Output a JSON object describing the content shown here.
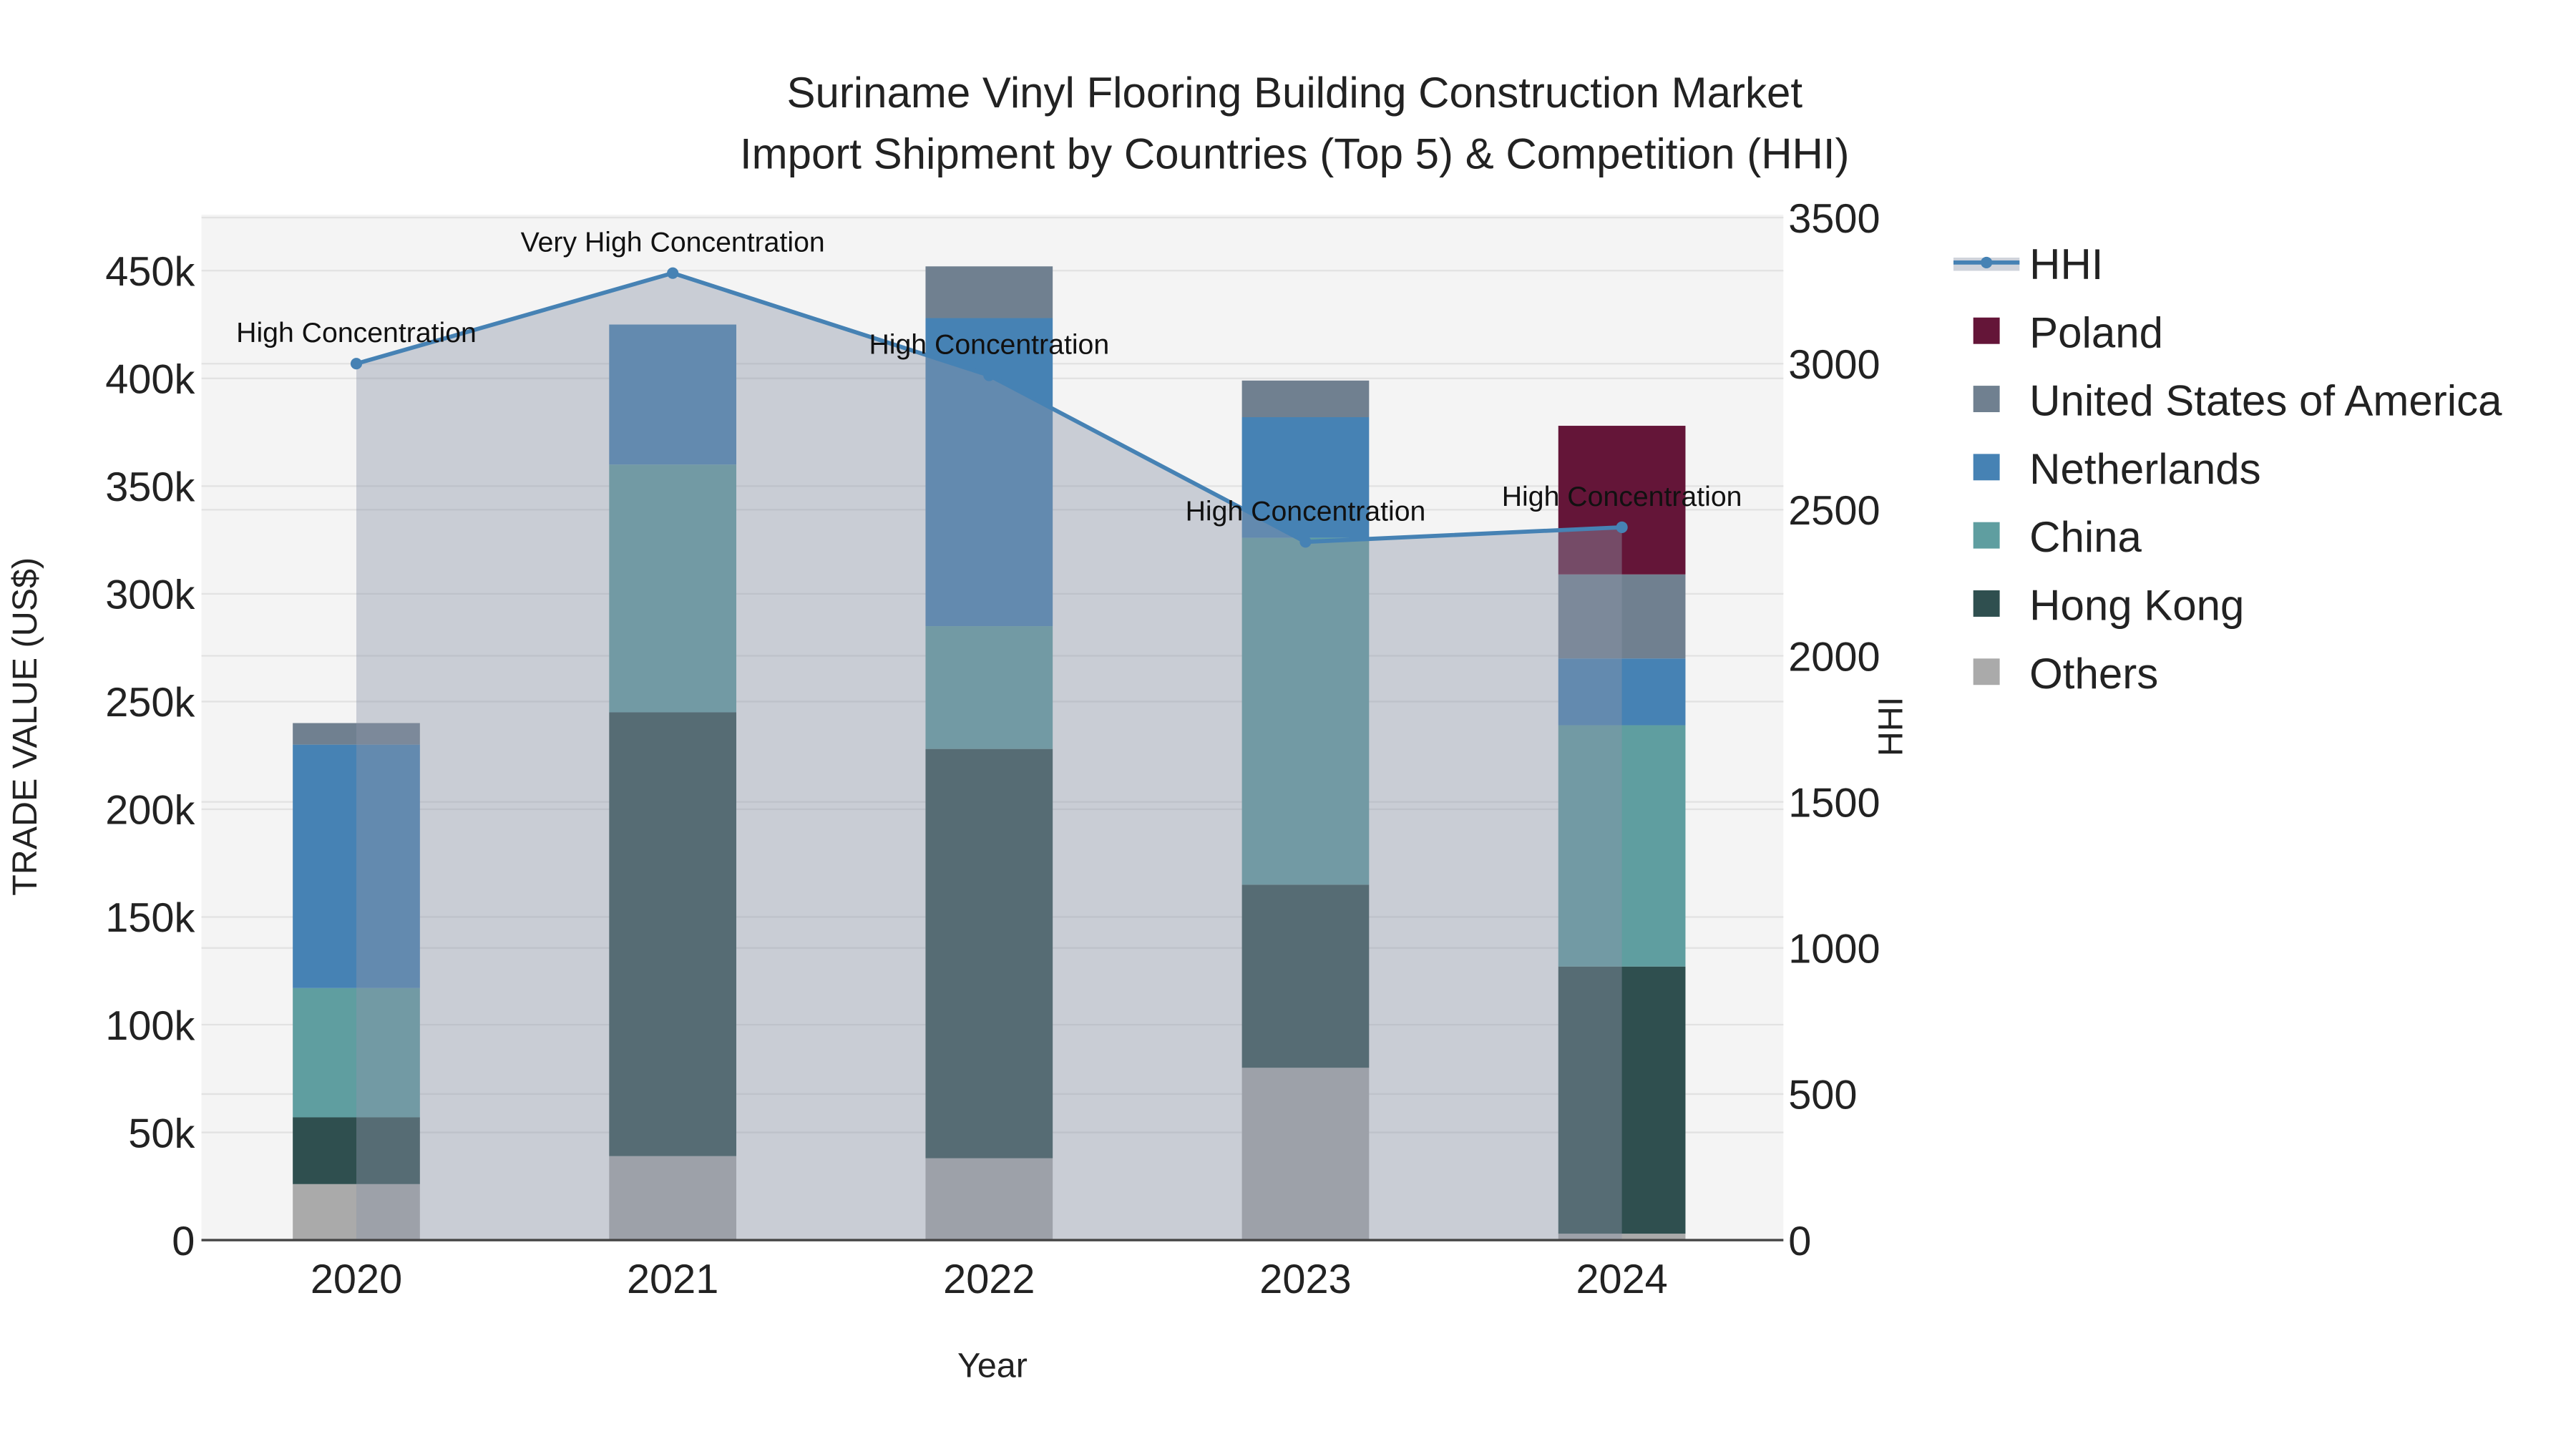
{
  "chart_data": {
    "type": "bar",
    "stacked": true,
    "title_line1": "Suriname Vinyl Flooring Building Construction Market",
    "title_line2": "Import Shipment by Countries (Top 5) & Competition (HHI)",
    "xlabel": "Year",
    "ylabel": "TRADE VALUE (US$)",
    "y2label": "HHI",
    "categories": [
      "2020",
      "2021",
      "2022",
      "2023",
      "2024"
    ],
    "ylim": [
      0,
      476000
    ],
    "y2lim": [
      0,
      3510
    ],
    "yticks": [
      0,
      50000,
      100000,
      150000,
      200000,
      250000,
      300000,
      350000,
      400000,
      450000
    ],
    "ytick_labels": [
      "0",
      "50k",
      "100k",
      "150k",
      "200k",
      "250k",
      "300k",
      "350k",
      "400k",
      "450k"
    ],
    "y2ticks": [
      0,
      500,
      1000,
      1500,
      2000,
      2500,
      3000,
      3500
    ],
    "y2tick_labels": [
      "0",
      "500",
      "1000",
      "1500",
      "2000",
      "2500",
      "3000",
      "3500"
    ],
    "grid": true,
    "legend_position": "right",
    "series": [
      {
        "name": "Others",
        "color": "#aaaaaa",
        "values": [
          26000,
          39000,
          38000,
          80000,
          3000
        ]
      },
      {
        "name": "Hong Kong",
        "color": "#2f4f4f",
        "values": [
          31000,
          206000,
          190000,
          85000,
          124000
        ]
      },
      {
        "name": "China",
        "color": "#5f9ea0",
        "values": [
          60000,
          115000,
          57000,
          161000,
          112000
        ]
      },
      {
        "name": "Netherlands",
        "color": "#4682b4",
        "values": [
          113000,
          65000,
          143000,
          56000,
          31000
        ]
      },
      {
        "name": "United States of America",
        "color": "#708090",
        "values": [
          10000,
          0,
          24000,
          17000,
          39000
        ]
      },
      {
        "name": "Poland",
        "color": "#641538",
        "values": [
          0,
          0,
          0,
          0,
          69000
        ]
      }
    ],
    "hhi": {
      "name": "HHI",
      "color": "#4682b4",
      "values": [
        3000,
        3310,
        2960,
        2390,
        2440
      ],
      "annotations": [
        "High Concentration",
        "Very High Concentration",
        "High Concentration",
        "High Concentration",
        "High Concentration"
      ]
    },
    "legend_order": [
      "HHI",
      "Poland",
      "United States of America",
      "Netherlands",
      "China",
      "Hong Kong",
      "Others"
    ]
  }
}
